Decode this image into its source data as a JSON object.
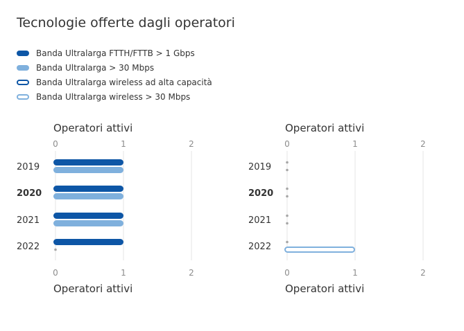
{
  "title": "Tecnologie offerte dagli operatori",
  "legend": [
    {
      "label": "Banda Ultralarga FTTH/FTTB > 1 Gbps",
      "color": "#0d56a6",
      "style": "filled"
    },
    {
      "label": "Banda Ultralarga > 30 Mbps",
      "color": "#7fb0dd",
      "style": "filled"
    },
    {
      "label": "Banda Ultralarga wireless ad alta capacità",
      "color": "#0d56a6",
      "style": "outline"
    },
    {
      "label": "Banda Ultralarga wireless > 30 Mbps",
      "color": "#7fb0dd",
      "style": "outline"
    }
  ],
  "chart_data": [
    {
      "type": "bar",
      "orientation": "horizontal",
      "xlabel": "Operatori attivi",
      "xlim": [
        0,
        2
      ],
      "xticks": [
        "0",
        "1",
        "2"
      ],
      "categories": [
        "2019",
        "2020",
        "2021",
        "2022"
      ],
      "highlighted_category": "2020",
      "series": [
        {
          "name": "Banda Ultralarga FTTH/FTTB > 1 Gbps",
          "values": [
            1,
            1,
            1,
            1
          ]
        },
        {
          "name": "Banda Ultralarga > 30 Mbps",
          "values": [
            1,
            1,
            1,
            0
          ]
        }
      ]
    },
    {
      "type": "bar",
      "orientation": "horizontal",
      "xlabel": "Operatori attivi",
      "xlim": [
        0,
        2
      ],
      "xticks": [
        "0",
        "1",
        "2"
      ],
      "categories": [
        "2019",
        "2020",
        "2021",
        "2022"
      ],
      "highlighted_category": "2020",
      "series": [
        {
          "name": "Banda Ultralarga wireless ad alta capacità",
          "values": [
            0,
            0,
            0,
            0
          ]
        },
        {
          "name": "Banda Ultralarga wireless > 30 Mbps",
          "values": [
            0,
            0,
            0,
            1
          ]
        }
      ]
    }
  ]
}
